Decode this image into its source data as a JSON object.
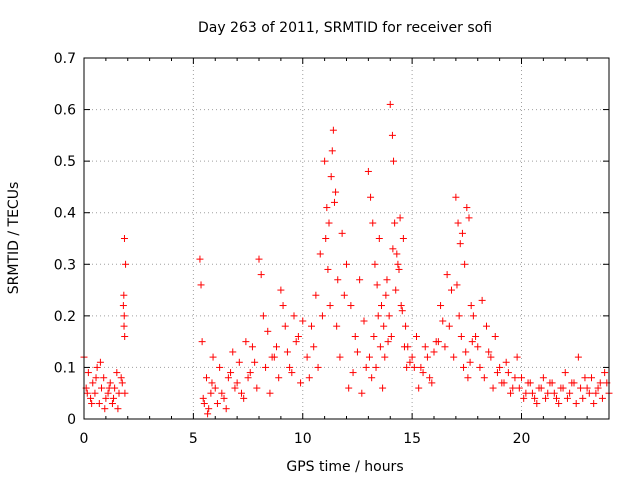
{
  "chart_data": {
    "type": "scatter",
    "title": "Day 263 of 2011, SRMTID for receiver sofi",
    "xlabel": "GPS time / hours",
    "ylabel": "SRMTID / TECUs",
    "xlim": [
      0,
      24
    ],
    "ylim": [
      0,
      0.7
    ],
    "x_ticks": [
      0,
      5,
      10,
      15,
      20
    ],
    "x_tick_labels": [
      "0",
      "5",
      "10",
      "15",
      "20"
    ],
    "y_ticks": [
      0,
      0.1,
      0.2,
      0.3,
      0.4,
      0.5,
      0.6,
      0.7
    ],
    "y_tick_labels": [
      "0",
      "0.1",
      "0.2",
      "0.3",
      "0.4",
      "0.5",
      "0.6",
      "0.7"
    ],
    "grid": true,
    "marker": "+",
    "marker_color": "#ff0000",
    "grid_color": "#a0a0a0",
    "series": [
      {
        "name": "SRMTID",
        "x": [
          0.0,
          0.1,
          0.2,
          0.3,
          0.4,
          0.5,
          0.6,
          0.7,
          0.8,
          0.9,
          1.0,
          1.1,
          1.2,
          1.3,
          1.4,
          1.5,
          1.6,
          1.7,
          1.8,
          1.85,
          1.9,
          0.15,
          0.35,
          0.55,
          0.75,
          0.95,
          1.15,
          1.35,
          1.55,
          1.75,
          1.82,
          1.84,
          1.86,
          1.83,
          1.87,
          5.3,
          5.35,
          5.4,
          5.5,
          5.6,
          5.7,
          5.8,
          5.9,
          6.0,
          6.2,
          6.4,
          6.6,
          6.8,
          7.0,
          7.2,
          7.4,
          7.6,
          7.8,
          8.0,
          8.1,
          8.2,
          8.4,
          8.6,
          8.8,
          9.0,
          9.2,
          9.4,
          9.6,
          9.8,
          10.0,
          5.45,
          5.65,
          5.85,
          6.1,
          6.3,
          6.5,
          6.7,
          6.9,
          7.1,
          7.3,
          7.5,
          7.7,
          7.9,
          8.3,
          8.5,
          8.7,
          8.9,
          9.1,
          9.3,
          9.5,
          9.7,
          9.9,
          10.2,
          10.4,
          10.6,
          10.8,
          11.0,
          11.1,
          11.2,
          11.3,
          11.4,
          11.5,
          11.6,
          11.8,
          12.0,
          12.2,
          12.4,
          12.6,
          12.8,
          10.3,
          10.5,
          10.7,
          10.9,
          11.05,
          11.15,
          11.25,
          11.35,
          11.45,
          11.55,
          11.7,
          11.9,
          12.1,
          12.3,
          12.5,
          12.7,
          12.9,
          13.0,
          13.1,
          13.2,
          13.3,
          13.4,
          13.5,
          13.6,
          13.7,
          13.8,
          13.9,
          14.0,
          14.1,
          14.15,
          14.2,
          14.3,
          14.4,
          14.5,
          14.6,
          14.7,
          14.8,
          14.9,
          13.05,
          13.15,
          13.25,
          13.35,
          13.45,
          13.55,
          13.65,
          13.75,
          13.85,
          13.95,
          14.05,
          14.12,
          14.25,
          14.35,
          14.45,
          14.55,
          14.65,
          14.75,
          15.0,
          15.2,
          15.4,
          15.6,
          15.8,
          16.0,
          16.2,
          16.4,
          16.6,
          16.8,
          17.0,
          17.1,
          17.2,
          17.3,
          17.4,
          17.5,
          17.6,
          17.7,
          17.8,
          17.9,
          15.1,
          15.3,
          15.5,
          15.7,
          15.9,
          16.1,
          16.3,
          16.5,
          16.7,
          16.9,
          17.05,
          17.15,
          17.25,
          17.35,
          17.45,
          17.55,
          17.65,
          17.75,
          18.0,
          18.2,
          18.4,
          18.6,
          18.8,
          19.0,
          19.2,
          19.4,
          19.6,
          19.8,
          20.0,
          20.2,
          20.4,
          20.6,
          20.8,
          21.0,
          21.2,
          21.4,
          21.6,
          21.8,
          22.0,
          22.2,
          22.4,
          22.6,
          22.8,
          23.0,
          23.2,
          23.4,
          23.6,
          23.8,
          24.0,
          18.1,
          18.3,
          18.5,
          18.7,
          18.9,
          19.1,
          19.3,
          19.5,
          19.7,
          19.9,
          20.1,
          20.3,
          20.5,
          20.7,
          20.9,
          21.1,
          21.3,
          21.5,
          21.7,
          21.9,
          22.1,
          22.3,
          22.5,
          22.7,
          22.9,
          23.1,
          23.3,
          23.5,
          23.7,
          23.9
        ],
        "y": [
          0.12,
          0.06,
          0.09,
          0.04,
          0.07,
          0.05,
          0.1,
          0.03,
          0.06,
          0.08,
          0.04,
          0.05,
          0.07,
          0.03,
          0.06,
          0.09,
          0.05,
          0.08,
          0.22,
          0.35,
          0.3,
          0.05,
          0.03,
          0.08,
          0.11,
          0.02,
          0.06,
          0.04,
          0.02,
          0.07,
          0.24,
          0.2,
          0.16,
          0.18,
          0.05,
          0.31,
          0.26,
          0.15,
          0.03,
          0.08,
          0.02,
          0.05,
          0.12,
          0.06,
          0.1,
          0.04,
          0.08,
          0.13,
          0.07,
          0.05,
          0.15,
          0.09,
          0.11,
          0.31,
          0.28,
          0.2,
          0.17,
          0.12,
          0.14,
          0.25,
          0.18,
          0.1,
          0.2,
          0.16,
          0.19,
          0.04,
          0.01,
          0.07,
          0.03,
          0.05,
          0.02,
          0.09,
          0.06,
          0.11,
          0.04,
          0.08,
          0.14,
          0.06,
          0.1,
          0.05,
          0.12,
          0.08,
          0.22,
          0.13,
          0.09,
          0.15,
          0.07,
          0.12,
          0.18,
          0.24,
          0.32,
          0.5,
          0.41,
          0.38,
          0.47,
          0.56,
          0.44,
          0.27,
          0.36,
          0.3,
          0.22,
          0.16,
          0.27,
          0.19,
          0.08,
          0.14,
          0.1,
          0.2,
          0.35,
          0.29,
          0.22,
          0.52,
          0.42,
          0.18,
          0.12,
          0.24,
          0.06,
          0.09,
          0.13,
          0.05,
          0.1,
          0.48,
          0.43,
          0.38,
          0.3,
          0.26,
          0.35,
          0.22,
          0.18,
          0.24,
          0.15,
          0.61,
          0.55,
          0.5,
          0.38,
          0.32,
          0.29,
          0.22,
          0.35,
          0.18,
          0.14,
          0.11,
          0.12,
          0.08,
          0.16,
          0.1,
          0.2,
          0.14,
          0.06,
          0.12,
          0.27,
          0.2,
          0.16,
          0.33,
          0.25,
          0.3,
          0.39,
          0.21,
          0.14,
          0.1,
          0.12,
          0.16,
          0.1,
          0.14,
          0.08,
          0.13,
          0.15,
          0.19,
          0.28,
          0.25,
          0.43,
          0.38,
          0.34,
          0.36,
          0.3,
          0.41,
          0.39,
          0.22,
          0.2,
          0.16,
          0.1,
          0.06,
          0.09,
          0.12,
          0.07,
          0.15,
          0.22,
          0.14,
          0.18,
          0.12,
          0.26,
          0.2,
          0.16,
          0.1,
          0.13,
          0.08,
          0.11,
          0.15,
          0.14,
          0.23,
          0.18,
          0.12,
          0.16,
          0.1,
          0.07,
          0.09,
          0.06,
          0.12,
          0.08,
          0.05,
          0.07,
          0.04,
          0.06,
          0.08,
          0.05,
          0.07,
          0.04,
          0.06,
          0.09,
          0.05,
          0.07,
          0.12,
          0.04,
          0.06,
          0.08,
          0.05,
          0.07,
          0.09,
          0.05,
          0.1,
          0.08,
          0.13,
          0.06,
          0.09,
          0.07,
          0.11,
          0.05,
          0.08,
          0.06,
          0.04,
          0.07,
          0.05,
          0.03,
          0.06,
          0.04,
          0.07,
          0.05,
          0.03,
          0.06,
          0.04,
          0.07,
          0.03,
          0.06,
          0.08,
          0.05,
          0.03,
          0.06,
          0.04,
          0.07
        ]
      }
    ]
  }
}
